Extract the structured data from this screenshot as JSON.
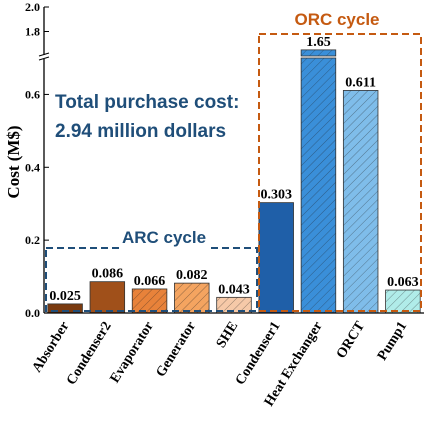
{
  "chart_data": {
    "type": "bar",
    "ylabel": "Cost (M$)",
    "categories": [
      "Absorber",
      "Condenser2",
      "Evaporator",
      "Generator",
      "SHE",
      "Condenser1",
      "Heat Exchanger",
      "ORCT",
      "Pump1"
    ],
    "values": [
      0.025,
      0.086,
      0.066,
      0.082,
      0.043,
      0.303,
      1.65,
      0.611,
      0.063
    ],
    "value_labels": [
      "0.025",
      "0.086",
      "0.066",
      "0.082",
      "0.043",
      "0.303",
      "1.65",
      "0.611",
      "0.063"
    ],
    "bar_colors": [
      "#7a3a10",
      "#a0501a",
      "#e8823a",
      "#f4a460",
      "#f6c9a8",
      "#1f5fa8",
      "#3a8fd9",
      "#7fbdea",
      "#b0ece9"
    ],
    "bar_hatched": [
      false,
      false,
      true,
      true,
      true,
      false,
      true,
      true,
      true
    ],
    "y_axis_break": {
      "lower_range": [
        0,
        0.7
      ],
      "upper_range": [
        1.6,
        2.0
      ],
      "lower_ticks": [
        0.0,
        0.2,
        0.4,
        0.6
      ],
      "upper_ticks": [
        1.8,
        2.0
      ]
    },
    "yticks_labels": [
      "0.0",
      "0.2",
      "0.4",
      "0.6",
      "1.8",
      "2.0"
    ],
    "annotations": {
      "total_line1": "Total purchase cost:",
      "total_line2": "2.94 million dollars",
      "arc_group_title": "ARC cycle",
      "orc_group_title": "ORC cycle"
    },
    "arc_group_color": "#1f4e79",
    "orc_group_color": "#c55a11",
    "grid": false,
    "legend": "none"
  }
}
